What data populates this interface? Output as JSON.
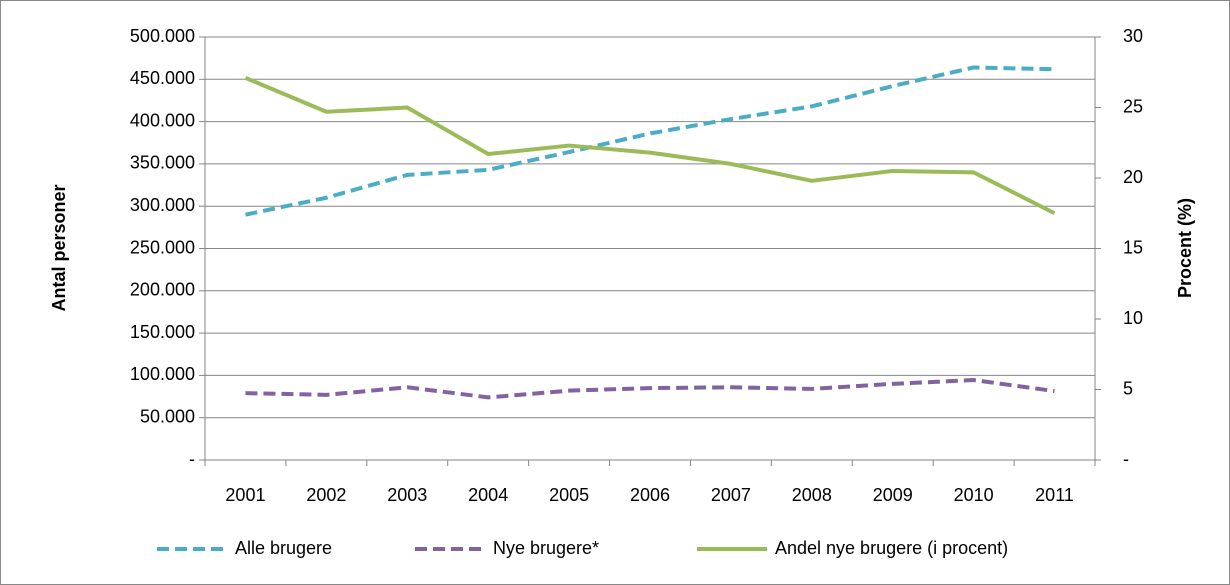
{
  "chart_data": {
    "type": "line",
    "categories": [
      "2001",
      "2002",
      "2003",
      "2004",
      "2005",
      "2006",
      "2007",
      "2008",
      "2009",
      "2010",
      "2011"
    ],
    "y_label": "Antal personer",
    "y2_label": "Procent (%)",
    "ylim": [
      0,
      500000
    ],
    "yticks": [
      {
        "value": 0,
        "label": "-"
      },
      {
        "value": 50000,
        "label": "50.000"
      },
      {
        "value": 100000,
        "label": "100.000"
      },
      {
        "value": 150000,
        "label": "150.000"
      },
      {
        "value": 200000,
        "label": "200.000"
      },
      {
        "value": 250000,
        "label": "250.000"
      },
      {
        "value": 300000,
        "label": "300.000"
      },
      {
        "value": 350000,
        "label": "350.000"
      },
      {
        "value": 400000,
        "label": "400.000"
      },
      {
        "value": 450000,
        "label": "450.000"
      },
      {
        "value": 500000,
        "label": "500.000"
      }
    ],
    "y2lim": [
      0,
      30
    ],
    "y2ticks": [
      {
        "value": 0,
        "label": "-"
      },
      5,
      10,
      15,
      20,
      25,
      30
    ],
    "grid": true,
    "legend": "bottom",
    "series": [
      {
        "name": "Alle brugere",
        "color": "#4bacc6",
        "dashed": true,
        "values": [
          290000,
          310000,
          337000,
          343000,
          364000,
          386000,
          403000,
          418000,
          442000,
          464000,
          462000
        ]
      },
      {
        "name": "Nye brugere*",
        "color": "#8064a2",
        "dashed": true,
        "values": [
          79000,
          77000,
          86000,
          74000,
          82000,
          85000,
          86000,
          84000,
          90000,
          94500,
          81500
        ]
      },
      {
        "name": "Andel nye brugere (i procent)",
        "color": "#9bbb59",
        "dashed": false,
        "axis": "y2",
        "values": [
          27.1,
          24.7,
          25.0,
          21.7,
          22.3,
          21.8,
          21.0,
          19.8,
          20.5,
          20.4,
          17.5
        ]
      }
    ]
  }
}
